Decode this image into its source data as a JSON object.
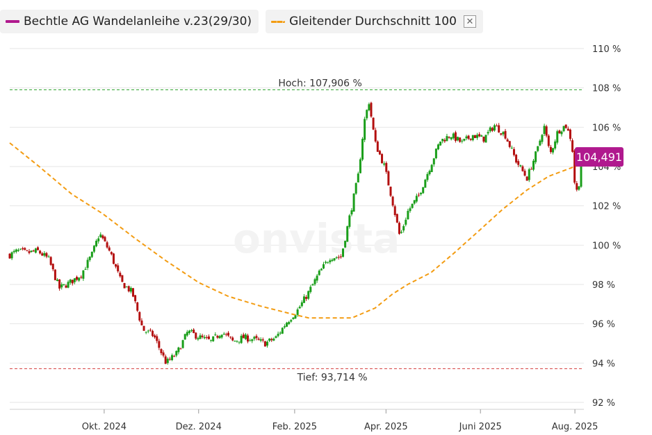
{
  "legend": {
    "series1_label": "Bechtle AG Wandelanleihe v.23(29/30)",
    "series2_label": "Gleitender Durchschnitt 100",
    "close_symbol": "✕"
  },
  "colors": {
    "series1": "#b0198e",
    "ma": "#f39c12",
    "up": "#1a9e1a",
    "down": "#b30f0f",
    "high_line": "#2aa12a",
    "low_line": "#d43a3a",
    "grid": "#e6e6e6",
    "price_box": "#b0198e"
  },
  "watermark": "onvista",
  "chart_data": {
    "type": "candlestick",
    "y_unit": "%",
    "ylim": [
      92,
      110
    ],
    "y_ticks": [
      "110 %",
      "108 %",
      "106 %",
      "104 %",
      "102 %",
      "100 %",
      "98 %",
      "96 %",
      "94 %",
      "92 %"
    ],
    "y_tick_values": [
      110,
      108,
      106,
      104,
      102,
      100,
      98,
      96,
      94,
      92
    ],
    "x_labels": [
      "Okt. 2024",
      "Dez. 2024",
      "Feb. 2025",
      "Apr. 2025",
      "Juni 2025",
      "Aug. 2025"
    ],
    "x_label_dates": [
      "2024-10-01",
      "2024-12-01",
      "2025-02-01",
      "2025-04-01",
      "2025-06-01",
      "2025-08-01"
    ],
    "x_range": [
      "2024-08-01",
      "2025-08-05"
    ],
    "high": {
      "label": "Hoch: 107,906 %",
      "value": 107.906,
      "date": "2025-03-20"
    },
    "low": {
      "label": "Tief: 93,714 %",
      "value": 93.714,
      "date": "2024-11-15"
    },
    "last_price": {
      "label": "104,491",
      "value": 104.491
    },
    "close_series": [
      [
        "2024-08-01",
        99.5
      ],
      [
        "2024-08-06",
        99.7
      ],
      [
        "2024-08-12",
        99.6
      ],
      [
        "2024-08-19",
        99.7
      ],
      [
        "2024-08-26",
        99.3
      ],
      [
        "2024-09-02",
        97.8
      ],
      [
        "2024-09-09",
        98.1
      ],
      [
        "2024-09-16",
        98.5
      ],
      [
        "2024-09-23",
        99.5
      ],
      [
        "2024-09-28",
        100.6
      ],
      [
        "2024-10-05",
        99.6
      ],
      [
        "2024-10-12",
        98.1
      ],
      [
        "2024-10-19",
        97.6
      ],
      [
        "2024-10-26",
        95.7
      ],
      [
        "2024-11-02",
        95.4
      ],
      [
        "2024-11-10",
        94.0
      ],
      [
        "2024-11-17",
        94.5
      ],
      [
        "2024-11-24",
        95.6
      ],
      [
        "2024-12-02",
        95.3
      ],
      [
        "2024-12-09",
        95.1
      ],
      [
        "2024-12-16",
        95.6
      ],
      [
        "2024-12-23",
        95.1
      ],
      [
        "2024-12-30",
        95.3
      ],
      [
        "2025-01-06",
        95.2
      ],
      [
        "2025-01-13",
        95.0
      ],
      [
        "2025-01-20",
        95.3
      ],
      [
        "2025-01-27",
        96.1
      ],
      [
        "2025-02-03",
        96.7
      ],
      [
        "2025-02-10",
        97.6
      ],
      [
        "2025-02-17",
        98.6
      ],
      [
        "2025-02-24",
        99.4
      ],
      [
        "2025-03-03",
        99.4
      ],
      [
        "2025-03-10",
        102.0
      ],
      [
        "2025-03-14",
        103.5
      ],
      [
        "2025-03-18",
        106.3
      ],
      [
        "2025-03-21",
        107.3
      ],
      [
        "2025-03-25",
        105.2
      ],
      [
        "2025-03-31",
        104.0
      ],
      [
        "2025-04-05",
        102.3
      ],
      [
        "2025-04-10",
        100.4
      ],
      [
        "2025-04-15",
        101.7
      ],
      [
        "2025-04-22",
        102.5
      ],
      [
        "2025-04-29",
        103.9
      ],
      [
        "2025-05-06",
        105.3
      ],
      [
        "2025-05-13",
        105.6
      ],
      [
        "2025-05-20",
        105.2
      ],
      [
        "2025-05-27",
        105.6
      ],
      [
        "2025-06-03",
        105.4
      ],
      [
        "2025-06-10",
        106.1
      ],
      [
        "2025-06-17",
        105.6
      ],
      [
        "2025-06-24",
        104.3
      ],
      [
        "2025-07-01",
        103.4
      ],
      [
        "2025-07-08",
        104.9
      ],
      [
        "2025-07-12",
        106.1
      ],
      [
        "2025-07-16",
        104.6
      ],
      [
        "2025-07-21",
        105.8
      ],
      [
        "2025-07-26",
        106.1
      ],
      [
        "2025-07-30",
        105.3
      ],
      [
        "2025-08-01",
        103.0
      ],
      [
        "2025-08-03",
        102.6
      ],
      [
        "2025-08-05",
        104.491
      ]
    ],
    "moving_average_100": [
      [
        "2024-08-01",
        105.2
      ],
      [
        "2024-08-20",
        104.0
      ],
      [
        "2024-09-10",
        102.6
      ],
      [
        "2024-09-30",
        101.6
      ],
      [
        "2024-10-20",
        100.4
      ],
      [
        "2024-11-10",
        99.2
      ],
      [
        "2024-12-01",
        98.1
      ],
      [
        "2024-12-20",
        97.4
      ],
      [
        "2025-01-10",
        96.9
      ],
      [
        "2025-01-30",
        96.5
      ],
      [
        "2025-02-10",
        96.3
      ],
      [
        "2025-02-25",
        96.3
      ],
      [
        "2025-03-10",
        96.3
      ],
      [
        "2025-03-25",
        96.8
      ],
      [
        "2025-04-05",
        97.5
      ],
      [
        "2025-04-15",
        98.0
      ],
      [
        "2025-04-30",
        98.6
      ],
      [
        "2025-05-15",
        99.6
      ],
      [
        "2025-06-01",
        100.8
      ],
      [
        "2025-06-15",
        101.8
      ],
      [
        "2025-07-01",
        102.8
      ],
      [
        "2025-07-15",
        103.5
      ],
      [
        "2025-08-01",
        104.0
      ],
      [
        "2025-08-05",
        104.1
      ]
    ]
  }
}
